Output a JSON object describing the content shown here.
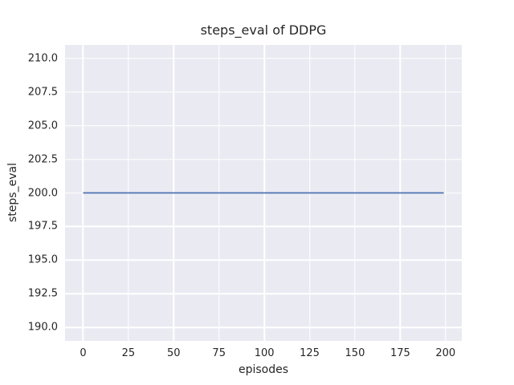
{
  "figure": {
    "background": "#ffffff"
  },
  "chart_data": {
    "type": "line",
    "title": "steps_eval of DDPG",
    "xlabel": "episodes",
    "ylabel": "steps_eval",
    "xlim": [
      -9.95,
      208.95
    ],
    "ylim": [
      189,
      211
    ],
    "xticks": [
      0,
      25,
      50,
      75,
      100,
      125,
      150,
      175,
      200
    ],
    "xtick_labels": [
      "0",
      "25",
      "50",
      "75",
      "100",
      "125",
      "150",
      "175",
      "200"
    ],
    "yticks": [
      190,
      192.5,
      195,
      197.5,
      200,
      202.5,
      205,
      207.5,
      210
    ],
    "ytick_labels": [
      "190.0",
      "192.5",
      "195.0",
      "197.5",
      "200.0",
      "202.5",
      "205.0",
      "207.5",
      "210.0"
    ],
    "grid": true,
    "legend": null,
    "plot_bg": "#eaeaf2",
    "grid_color": "#ffffff",
    "text_color": "#262626",
    "series": [
      {
        "name": "steps_eval",
        "color": "#4c72b0",
        "line_width": 1.8,
        "x": [
          0,
          199
        ],
        "y": [
          200,
          200
        ]
      }
    ]
  }
}
